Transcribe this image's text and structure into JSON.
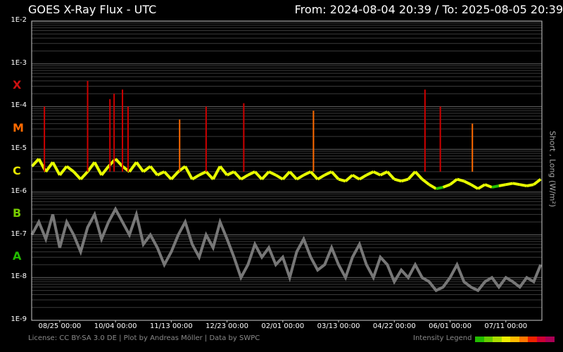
{
  "header": {
    "title": "GOES X-Ray Flux - UTC",
    "range": "From: 2024-08-04 20:39  /  To: 2025-08-05 20:39"
  },
  "footer": {
    "credits": "License: CC BY-SA 3.0 DE | Plot by Andreas Möller | Data by SWPC",
    "legend_label": "Intensity Legend"
  },
  "colors": {
    "background": "#000000",
    "long_channel_low": "#22c000",
    "long_channel_mid": "#e8ff00",
    "long_channel_high": "#ff6a00",
    "long_channel_x": "#cc0000",
    "short_channel": "#777777",
    "legend": [
      "#22bb00",
      "#66cc00",
      "#aadd00",
      "#eeee00",
      "#ffbb00",
      "#ff7700",
      "#ee2200",
      "#cc0033",
      "#aa0055"
    ]
  },
  "chart_data": {
    "type": "line",
    "title": "GOES X-Ray Flux - UTC",
    "ylabel": "Short , Long (W/m²)",
    "yscale": "log",
    "ylim": [
      "1E-9",
      "1E-2"
    ],
    "y_ticks": [
      "1E-2",
      "1E-3",
      "1E-4",
      "1E-5",
      "1E-6",
      "1E-7",
      "1E-8",
      "1E-9"
    ],
    "flare_classes": [
      {
        "name": "X",
        "color": "#cc1111"
      },
      {
        "name": "M",
        "color": "#ff6a00"
      },
      {
        "name": "C",
        "color": "#e8e800"
      },
      {
        "name": "B",
        "color": "#77cc00"
      },
      {
        "name": "A",
        "color": "#22bb00"
      }
    ],
    "x_ticks": [
      "08/25 00:00",
      "10/04 00:00",
      "11/13 00:00",
      "12/23 00:00",
      "02/01 00:00",
      "03/13 00:00",
      "04/22 00:00",
      "06/01 00:00",
      "07/11 00:00"
    ],
    "xlim": [
      "2024-08-04 20:39",
      "2025-08-05 20:39"
    ],
    "series": [
      {
        "name": "Long",
        "x": [
          "2024-08-05",
          "2024-08-10",
          "2024-08-15",
          "2024-08-20",
          "2024-08-25",
          "2024-08-30",
          "2024-09-04",
          "2024-09-09",
          "2024-09-14",
          "2024-09-19",
          "2024-09-24",
          "2024-09-29",
          "2024-10-04",
          "2024-10-09",
          "2024-10-14",
          "2024-10-19",
          "2024-10-24",
          "2024-10-29",
          "2024-11-03",
          "2024-11-08",
          "2024-11-13",
          "2024-11-18",
          "2024-11-23",
          "2024-11-28",
          "2024-12-03",
          "2024-12-08",
          "2024-12-13",
          "2024-12-18",
          "2024-12-23",
          "2024-12-28",
          "2025-01-02",
          "2025-01-07",
          "2025-01-12",
          "2025-01-17",
          "2025-01-22",
          "2025-01-27",
          "2025-02-01",
          "2025-02-06",
          "2025-02-11",
          "2025-02-16",
          "2025-02-21",
          "2025-02-26",
          "2025-03-03",
          "2025-03-08",
          "2025-03-13",
          "2025-03-18",
          "2025-03-23",
          "2025-03-28",
          "2025-04-02",
          "2025-04-07",
          "2025-04-12",
          "2025-04-17",
          "2025-04-22",
          "2025-04-27",
          "2025-05-02",
          "2025-05-07",
          "2025-05-12",
          "2025-05-17",
          "2025-05-22",
          "2025-05-27",
          "2025-06-01",
          "2025-06-06",
          "2025-06-11",
          "2025-06-16",
          "2025-06-21",
          "2025-06-26",
          "2025-07-01",
          "2025-07-06",
          "2025-07-11",
          "2025-07-16",
          "2025-07-21",
          "2025-07-26",
          "2025-07-31",
          "2025-08-05"
        ],
        "values": [
          4e-06,
          6e-06,
          3e-06,
          5e-06,
          2.5e-06,
          4e-06,
          3e-06,
          2e-06,
          3e-06,
          5e-06,
          2.5e-06,
          4e-06,
          6e-06,
          4e-06,
          3e-06,
          5e-06,
          3e-06,
          4e-06,
          2.5e-06,
          3e-06,
          2e-06,
          3e-06,
          4e-06,
          2e-06,
          2.5e-06,
          3e-06,
          2e-06,
          4e-06,
          2.5e-06,
          3e-06,
          2e-06,
          2.5e-06,
          3e-06,
          2e-06,
          3e-06,
          2.5e-06,
          2e-06,
          3e-06,
          2e-06,
          2.5e-06,
          3e-06,
          2e-06,
          2.5e-06,
          3e-06,
          2e-06,
          1.8e-06,
          2.5e-06,
          2e-06,
          2.5e-06,
          3e-06,
          2.5e-06,
          3e-06,
          2e-06,
          1.8e-06,
          2e-06,
          3e-06,
          2e-06,
          1.5e-06,
          1.2e-06,
          1.3e-06,
          1.5e-06,
          2e-06,
          1.8e-06,
          1.5e-06,
          1.2e-06,
          1.5e-06,
          1.3e-06,
          1.4e-06,
          1.5e-06,
          1.6e-06,
          1.5e-06,
          1.4e-06,
          1.5e-06,
          2e-06
        ]
      },
      {
        "name": "Short",
        "x": [
          "2024-08-05",
          "2024-08-10",
          "2024-08-15",
          "2024-08-20",
          "2024-08-25",
          "2024-08-30",
          "2024-09-04",
          "2024-09-09",
          "2024-09-14",
          "2024-09-19",
          "2024-09-24",
          "2024-09-29",
          "2024-10-04",
          "2024-10-09",
          "2024-10-14",
          "2024-10-19",
          "2024-10-24",
          "2024-10-29",
          "2024-11-03",
          "2024-11-08",
          "2024-11-13",
          "2024-11-18",
          "2024-11-23",
          "2024-11-28",
          "2024-12-03",
          "2024-12-08",
          "2024-12-13",
          "2024-12-18",
          "2024-12-23",
          "2024-12-28",
          "2025-01-02",
          "2025-01-07",
          "2025-01-12",
          "2025-01-17",
          "2025-01-22",
          "2025-01-27",
          "2025-02-01",
          "2025-02-06",
          "2025-02-11",
          "2025-02-16",
          "2025-02-21",
          "2025-02-26",
          "2025-03-03",
          "2025-03-08",
          "2025-03-13",
          "2025-03-18",
          "2025-03-23",
          "2025-03-28",
          "2025-04-02",
          "2025-04-07",
          "2025-04-12",
          "2025-04-17",
          "2025-04-22",
          "2025-04-27",
          "2025-05-02",
          "2025-05-07",
          "2025-05-12",
          "2025-05-17",
          "2025-05-22",
          "2025-05-27",
          "2025-06-01",
          "2025-06-06",
          "2025-06-11",
          "2025-06-16",
          "2025-06-21",
          "2025-06-26",
          "2025-07-01",
          "2025-07-06",
          "2025-07-11",
          "2025-07-16",
          "2025-07-21",
          "2025-07-26",
          "2025-07-31",
          "2025-08-05"
        ],
        "values": [
          1e-07,
          2e-07,
          8e-08,
          3e-07,
          5e-08,
          2e-07,
          1e-07,
          4e-08,
          1.5e-07,
          3e-07,
          8e-08,
          2e-07,
          4e-07,
          2e-07,
          1e-07,
          3e-07,
          6e-08,
          1e-07,
          5e-08,
          2e-08,
          4e-08,
          1e-07,
          2e-07,
          6e-08,
          3e-08,
          1e-07,
          5e-08,
          2e-07,
          8e-08,
          3e-08,
          1e-08,
          2e-08,
          6e-08,
          3e-08,
          5e-08,
          2e-08,
          3e-08,
          1e-08,
          4e-08,
          8e-08,
          3e-08,
          1.5e-08,
          2e-08,
          5e-08,
          2e-08,
          1e-08,
          3e-08,
          6e-08,
          2e-08,
          1e-08,
          3e-08,
          2e-08,
          8e-09,
          1.5e-08,
          1e-08,
          2e-08,
          1e-08,
          8e-09,
          5e-09,
          6e-09,
          1e-08,
          2e-08,
          8e-09,
          6e-09,
          5e-09,
          8e-09,
          1e-08,
          6e-09,
          1e-08,
          8e-09,
          6e-09,
          1e-08,
          8e-09,
          2e-08
        ]
      }
    ],
    "flare_peaks": [
      {
        "x": "2024-08-14",
        "y": 0.0001
      },
      {
        "x": "2024-09-14",
        "y": 0.0004
      },
      {
        "x": "2024-09-30",
        "y": 0.00015
      },
      {
        "x": "2024-10-03",
        "y": 0.0002
      },
      {
        "x": "2024-10-09",
        "y": 0.00025
      },
      {
        "x": "2024-10-13",
        "y": 0.0001
      },
      {
        "x": "2024-11-19",
        "y": 5e-05
      },
      {
        "x": "2024-12-08",
        "y": 0.0001
      },
      {
        "x": "2025-01-04",
        "y": 0.00012
      },
      {
        "x": "2025-02-23",
        "y": 8e-05
      },
      {
        "x": "2025-05-14",
        "y": 0.00025
      },
      {
        "x": "2025-05-25",
        "y": 0.0001
      },
      {
        "x": "2025-06-17",
        "y": 4e-05
      }
    ]
  }
}
